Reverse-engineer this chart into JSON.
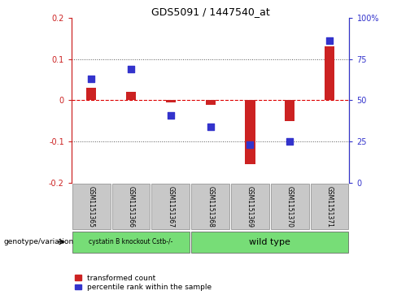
{
  "title": "GDS5091 / 1447540_at",
  "samples": [
    "GSM1151365",
    "GSM1151366",
    "GSM1151367",
    "GSM1151368",
    "GSM1151369",
    "GSM1151370",
    "GSM1151371"
  ],
  "red_values": [
    0.03,
    0.02,
    -0.005,
    -0.01,
    -0.155,
    -0.05,
    0.13
  ],
  "blue_percentile": [
    63,
    69,
    41,
    34,
    23,
    25,
    86
  ],
  "ylim_left": [
    -0.2,
    0.2
  ],
  "ylim_right": [
    0,
    100
  ],
  "yticks_left": [
    -0.2,
    -0.1,
    0.0,
    0.1,
    0.2
  ],
  "yticks_right": [
    0,
    25,
    50,
    75,
    100
  ],
  "ytick_labels_left": [
    "-0.2",
    "-0.1",
    "0",
    "0.1",
    "0.2"
  ],
  "ytick_labels_right": [
    "0",
    "25",
    "50",
    "75",
    "100%"
  ],
  "group1_label": "cystatin B knockout Cstb-/-",
  "group2_label": "wild type",
  "group1_indices": [
    0,
    1,
    2
  ],
  "group2_indices": [
    3,
    4,
    5,
    6
  ],
  "green_color": "#77DD77",
  "bar_color_red": "#CC2222",
  "bar_color_blue": "#3333CC",
  "sample_box_color": "#C8C8C8",
  "legend_red_label": "transformed count",
  "legend_blue_label": "percentile rank within the sample",
  "genotype_label": "genotype/variation",
  "hline_color": "#DD0000",
  "bar_width": 0.25,
  "blue_square_size": 30,
  "hline_dotted_color": "#555555"
}
